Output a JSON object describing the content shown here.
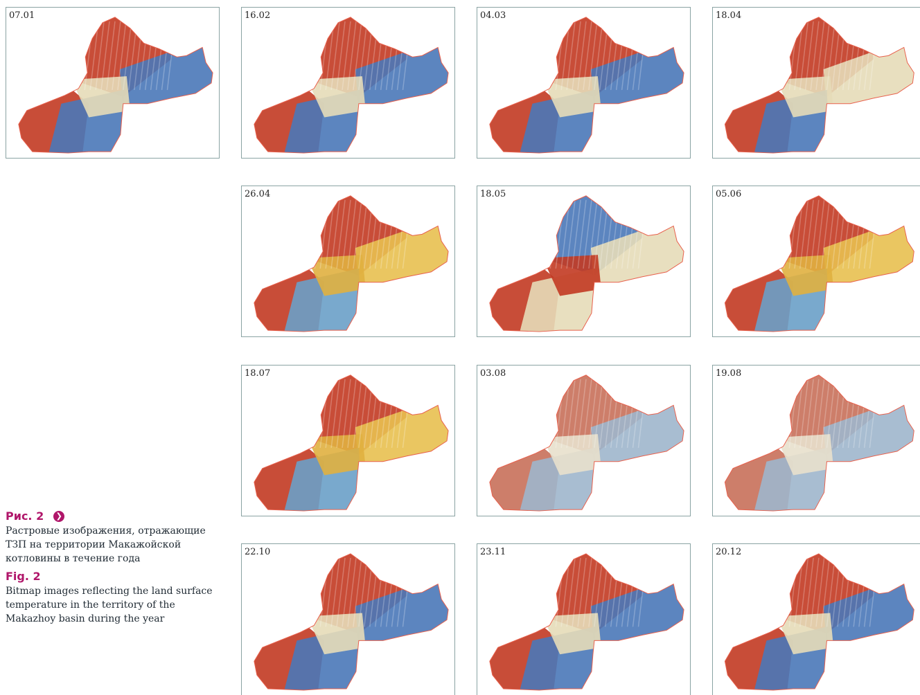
{
  "panels": [
    {
      "date": "07.01",
      "palette": "winter"
    },
    {
      "date": "16.02",
      "palette": "winter"
    },
    {
      "date": "04.03",
      "palette": "winter"
    },
    {
      "date": "18.04",
      "palette": "spring"
    },
    {
      "date": "26.04",
      "palette": "warm"
    },
    {
      "date": "18.05",
      "palette": "inverted"
    },
    {
      "date": "05.06",
      "palette": "warm"
    },
    {
      "date": "18.07",
      "palette": "warm"
    },
    {
      "date": "03.08",
      "palette": "muted"
    },
    {
      "date": "19.08",
      "palette": "muted"
    },
    {
      "date": "22.10",
      "palette": "winter"
    },
    {
      "date": "23.11",
      "palette": "winter"
    },
    {
      "date": "20.12",
      "palette": "winter"
    }
  ],
  "caption": {
    "ru_label": "Рис. 2",
    "ru_text": "Растровые изображения, отражающие ТЗП на территории Макажойской котловины в течение года",
    "en_label": "Fig. 2",
    "en_text": "Bitmap images reflecting the land surface temperature in the territory of the Makazhoy basin during the year"
  },
  "colors": {
    "accent": "#b0166a",
    "warm": "#c23a22",
    "cool": "#4a78b8",
    "neutral": "#e6dcb8",
    "border": "#8aa3a3",
    "outline": "#e8604c"
  }
}
